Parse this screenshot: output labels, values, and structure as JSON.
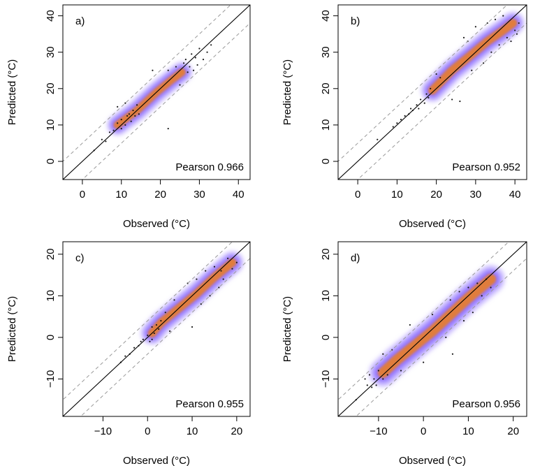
{
  "figure": {
    "x_axis_label": "Observed (°C)",
    "y_axis_label": "Predicted (°C)"
  },
  "chart_data": [
    {
      "type": "scatter",
      "panel": "a)",
      "annotation": "Pearson 0.966",
      "xlabel": "Observed (°C)",
      "ylabel": "Predicted (°C)",
      "xlim": [
        -5,
        43
      ],
      "ylim": [
        -5,
        43
      ],
      "xticks": [
        0,
        10,
        20,
        30,
        40
      ],
      "yticks": [
        0,
        10,
        20,
        30,
        40
      ],
      "reference_lines": [
        {
          "kind": "identity",
          "slope": 1,
          "offset": 0,
          "style": "solid"
        },
        {
          "kind": "band",
          "slope": 1,
          "offset": 5,
          "style": "dashed"
        },
        {
          "kind": "band",
          "slope": 1,
          "offset": -5,
          "style": "dashed"
        }
      ],
      "density_core": [
        [
          9,
          10
        ],
        [
          14,
          14
        ],
        [
          19,
          19
        ],
        [
          23,
          22.5
        ],
        [
          25.5,
          24.5
        ]
      ],
      "density_halo_width": 2.2,
      "points": [
        [
          3,
          3
        ],
        [
          5,
          6
        ],
        [
          6,
          5.5
        ],
        [
          7,
          8
        ],
        [
          8,
          8.5
        ],
        [
          9,
          10.5
        ],
        [
          10,
          9
        ],
        [
          10,
          11.5
        ],
        [
          11,
          10
        ],
        [
          11.5,
          12.5
        ],
        [
          12,
          13
        ],
        [
          12.5,
          11
        ],
        [
          13,
          14
        ],
        [
          13.5,
          12.5
        ],
        [
          14,
          15.5
        ],
        [
          14.5,
          13
        ],
        [
          9,
          15
        ],
        [
          11,
          16
        ],
        [
          18,
          25
        ],
        [
          22,
          9
        ],
        [
          22,
          25
        ],
        [
          24,
          26
        ],
        [
          25,
          21
        ],
        [
          26,
          27
        ],
        [
          26.5,
          28
        ],
        [
          27,
          24.5
        ],
        [
          27.5,
          26
        ],
        [
          28,
          29.5
        ],
        [
          28.5,
          25
        ],
        [
          29,
          28.5
        ],
        [
          29.5,
          26.5
        ],
        [
          30,
          31
        ],
        [
          31,
          28
        ],
        [
          32,
          30
        ],
        [
          33,
          32
        ]
      ]
    },
    {
      "type": "scatter",
      "panel": "b)",
      "annotation": "Pearson 0.952",
      "xlabel": "Observed (°C)",
      "ylabel": "Predicted (°C)",
      "xlim": [
        -5,
        43
      ],
      "ylim": [
        -5,
        43
      ],
      "xticks": [
        0,
        10,
        20,
        30,
        40
      ],
      "yticks": [
        0,
        10,
        20,
        30,
        40
      ],
      "reference_lines": [
        {
          "kind": "identity",
          "slope": 1,
          "offset": 0,
          "style": "solid"
        },
        {
          "kind": "band",
          "slope": 1,
          "offset": 5,
          "style": "dashed"
        },
        {
          "kind": "band",
          "slope": 1,
          "offset": -5,
          "style": "dashed"
        }
      ],
      "density_core": [
        [
          19,
          19.5
        ],
        [
          24,
          25
        ],
        [
          28,
          28.5
        ],
        [
          33,
          33
        ],
        [
          37,
          36
        ],
        [
          39.5,
          38
        ]
      ],
      "density_halo_width": 2.4,
      "points": [
        [
          5,
          6
        ],
        [
          9,
          9.5
        ],
        [
          10,
          10.5
        ],
        [
          11,
          11.5
        ],
        [
          12,
          12.5
        ],
        [
          13,
          13
        ],
        [
          13.5,
          14.5
        ],
        [
          14,
          14
        ],
        [
          15,
          15.5
        ],
        [
          15.5,
          14.5
        ],
        [
          16,
          17
        ],
        [
          17,
          16
        ],
        [
          17.5,
          18.5
        ],
        [
          18,
          17.5
        ],
        [
          18.5,
          20
        ],
        [
          20,
          24
        ],
        [
          21,
          23
        ],
        [
          24,
          17
        ],
        [
          26,
          16.5
        ],
        [
          27,
          34
        ],
        [
          28,
          33
        ],
        [
          29,
          25
        ],
        [
          30,
          37
        ],
        [
          32,
          27
        ],
        [
          33,
          38
        ],
        [
          34,
          30
        ],
        [
          35,
          39
        ],
        [
          36,
          32
        ],
        [
          37,
          40
        ],
        [
          38,
          34
        ],
        [
          39,
          33
        ],
        [
          40,
          36
        ],
        [
          40.5,
          35
        ],
        [
          41,
          38
        ]
      ]
    },
    {
      "type": "scatter",
      "panel": "c)",
      "annotation": "Pearson 0.955",
      "xlabel": "Observed (°C)",
      "ylabel": "Predicted (°C)",
      "xlim": [
        -19,
        23
      ],
      "ylim": [
        -19,
        23
      ],
      "xticks": [
        -10,
        0,
        10,
        20
      ],
      "yticks": [
        -10,
        0,
        10,
        20
      ],
      "reference_lines": [
        {
          "kind": "identity",
          "slope": 1,
          "offset": 0,
          "style": "solid"
        },
        {
          "kind": "band",
          "slope": 1,
          "offset": 4,
          "style": "dashed"
        },
        {
          "kind": "band",
          "slope": 1,
          "offset": -4,
          "style": "dashed"
        }
      ],
      "density_core": [
        [
          1,
          1
        ],
        [
          3,
          3.5
        ],
        [
          7,
          7
        ],
        [
          11,
          10.5
        ],
        [
          15,
          14.5
        ],
        [
          19,
          18
        ]
      ],
      "density_halo_width": 2.1,
      "points": [
        [
          -6,
          -6
        ],
        [
          -5,
          -4.5
        ],
        [
          -4,
          -4
        ],
        [
          -3,
          -2.5
        ],
        [
          -2,
          -2
        ],
        [
          -1.5,
          -1
        ],
        [
          -1,
          -0.5
        ],
        [
          0,
          0.5
        ],
        [
          0.5,
          -1
        ],
        [
          1,
          -0.5
        ],
        [
          1,
          2.5
        ],
        [
          1.5,
          1
        ],
        [
          2,
          3
        ],
        [
          2.5,
          2
        ],
        [
          3,
          4
        ],
        [
          4,
          6
        ],
        [
          5,
          1.5
        ],
        [
          6,
          9
        ],
        [
          9,
          13
        ],
        [
          10,
          2.5
        ],
        [
          11,
          14
        ],
        [
          12,
          8
        ],
        [
          13,
          16
        ],
        [
          14,
          10
        ],
        [
          15,
          17
        ],
        [
          16,
          12
        ],
        [
          16.5,
          16
        ],
        [
          17,
          14
        ],
        [
          18,
          19
        ],
        [
          19,
          16.5
        ],
        [
          20,
          18
        ]
      ]
    },
    {
      "type": "scatter",
      "panel": "d)",
      "annotation": "Pearson 0.956",
      "xlabel": "Observed (°C)",
      "ylabel": "Predicted (°C)",
      "xlim": [
        -19,
        23
      ],
      "ylim": [
        -19,
        23
      ],
      "xticks": [
        -10,
        0,
        10,
        20
      ],
      "yticks": [
        -10,
        0,
        10,
        20
      ],
      "reference_lines": [
        {
          "kind": "identity",
          "slope": 1,
          "offset": 0,
          "style": "solid"
        },
        {
          "kind": "band",
          "slope": 1,
          "offset": 4,
          "style": "dashed"
        },
        {
          "kind": "band",
          "slope": 1,
          "offset": -4,
          "style": "dashed"
        }
      ],
      "density_core": [
        [
          -9,
          -8.5
        ],
        [
          -6,
          -5.5
        ],
        [
          -2,
          -2
        ],
        [
          2,
          1.5
        ],
        [
          6,
          5.5
        ],
        [
          10,
          9.5
        ],
        [
          15,
          14
        ]
      ],
      "density_halo_width": 2.6,
      "points": [
        [
          -15,
          -15
        ],
        [
          -13,
          -10
        ],
        [
          -12.5,
          -11.5
        ],
        [
          -12,
          -9
        ],
        [
          -11.5,
          -12
        ],
        [
          -11,
          -10
        ],
        [
          -10.5,
          -11.5
        ],
        [
          -10,
          -8
        ],
        [
          -9,
          -10
        ],
        [
          -9,
          -4
        ],
        [
          -8,
          -9
        ],
        [
          -7,
          -3
        ],
        [
          -5,
          -8
        ],
        [
          -3,
          3
        ],
        [
          0,
          -6
        ],
        [
          2,
          5.5
        ],
        [
          5,
          0
        ],
        [
          6,
          9
        ],
        [
          6.5,
          -4
        ],
        [
          8,
          11
        ],
        [
          9,
          4
        ],
        [
          10,
          12
        ],
        [
          11,
          6
        ],
        [
          12,
          13
        ],
        [
          13,
          10
        ],
        [
          14,
          14
        ],
        [
          15,
          12
        ]
      ]
    }
  ]
}
